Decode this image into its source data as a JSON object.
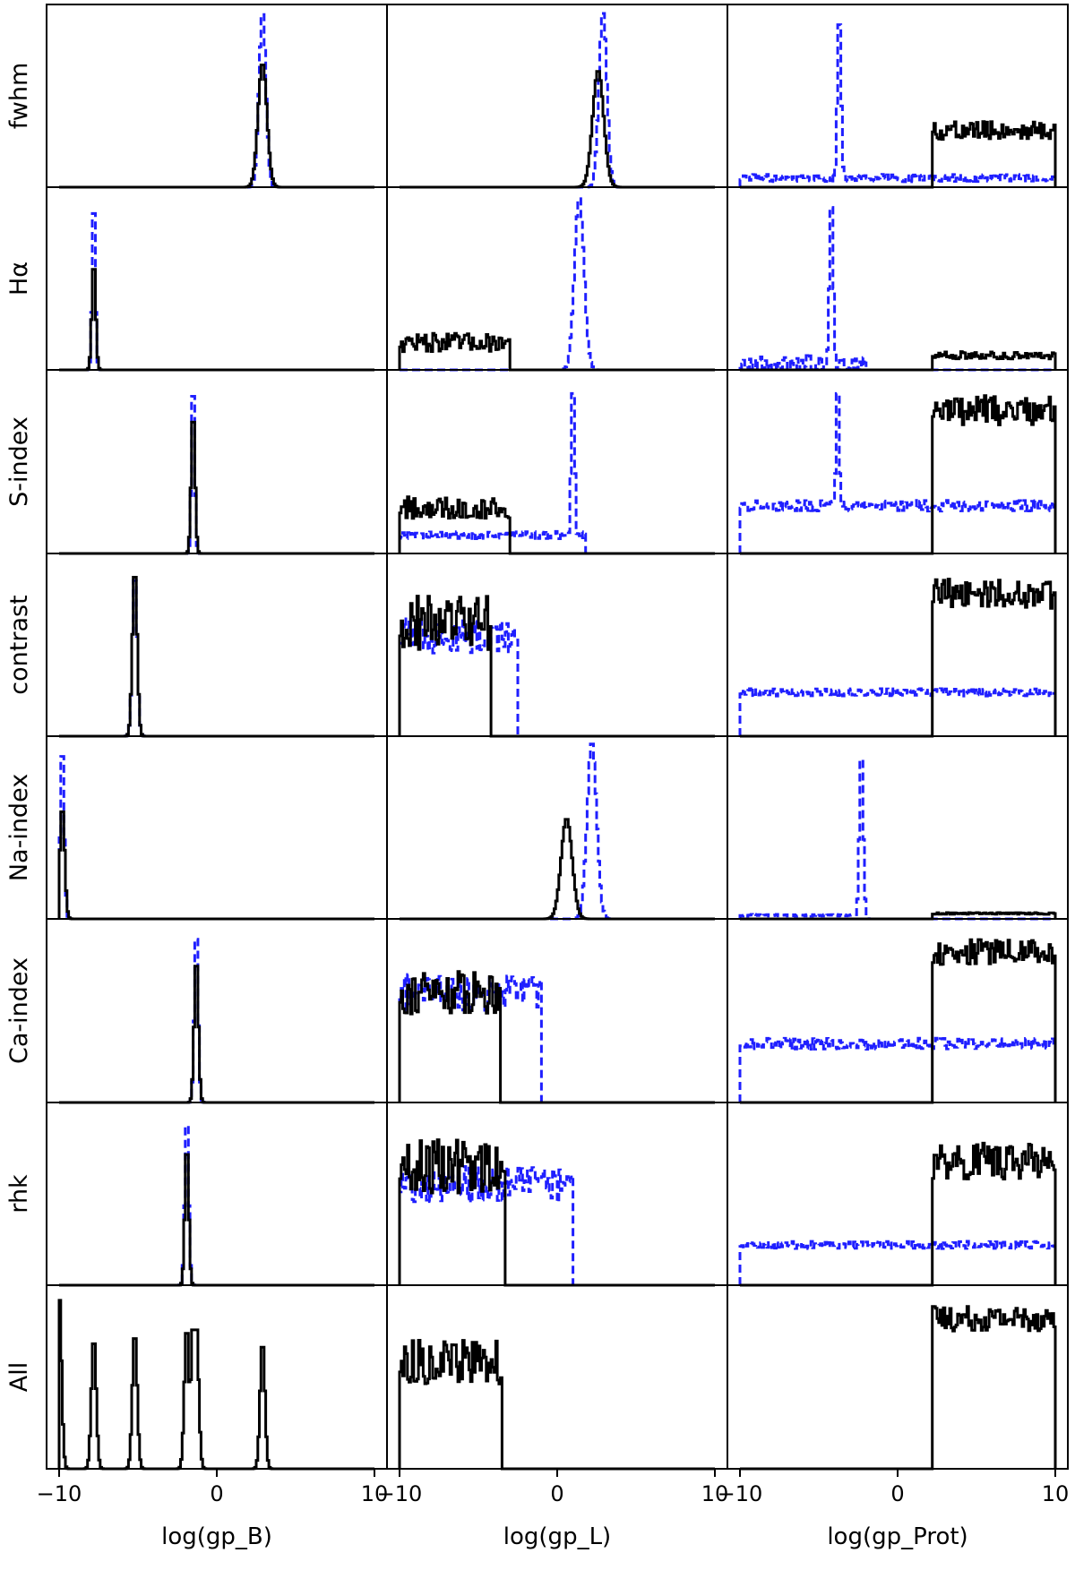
{
  "legend": [
    {
      "style": "solid",
      "color": "#000000"
    },
    {
      "style": "dashed",
      "color": "#1f1fff"
    }
  ],
  "chart_data": {
    "type": "histogram-grid",
    "rows": [
      "fwhm",
      "Hα",
      "S-index",
      "contrast",
      "Na-index",
      "Ca-index",
      "rhk",
      "All"
    ],
    "columns": [
      {
        "xlabel": "log(gp_B)",
        "xlim": [
          -10,
          10
        ],
        "ticks": [
          -10,
          0,
          10
        ],
        "tick_labels": [
          "−10",
          "0",
          "10"
        ]
      },
      {
        "xlabel": "log(gp_L)",
        "xlim": [
          -10,
          10
        ],
        "ticks": [
          -10,
          0,
          10
        ],
        "tick_labels": [
          "−10",
          "0",
          "10"
        ]
      },
      {
        "xlabel": "log(gp_Prot)",
        "xlim": [
          -10,
          10
        ],
        "ticks": [
          -10,
          0,
          10
        ],
        "tick_labels": [
          "−10",
          "0",
          "10"
        ]
      }
    ],
    "series": [
      {
        "style": "solid",
        "color": "#000000"
      },
      {
        "style": "dashed",
        "color": "#1f1fff"
      }
    ],
    "panels": [
      [
        {
          "solid": {
            "kind": "peak",
            "center": 2.9,
            "width": 0.28,
            "height": 0.68
          },
          "dashed": {
            "kind": "peak",
            "center": 2.9,
            "width": 0.22,
            "height": 0.97
          }
        },
        {
          "solid": {
            "kind": "peak",
            "center": 2.6,
            "width": 0.35,
            "height": 0.64
          },
          "dashed": {
            "kind": "peak",
            "center": 2.9,
            "width": 0.25,
            "height": 0.97
          }
        },
        {
          "solid": {
            "kind": "flat",
            "from": 2.2,
            "to": 10,
            "level": 0.31,
            "noise": 0.05
          },
          "dashed": {
            "kind": "flat-peak",
            "from": -10,
            "to": 10,
            "level": 0.05,
            "noise": 0.02,
            "peak": -3.7,
            "peak_height": 0.97
          }
        }
      ],
      [
        {
          "solid": {
            "kind": "peak",
            "center": -7.8,
            "width": 0.12,
            "height": 0.6
          },
          "dashed": {
            "kind": "peak",
            "center": -7.8,
            "width": 0.1,
            "height": 0.97
          }
        },
        {
          "solid": {
            "kind": "flat",
            "from": -10,
            "to": -3,
            "level": 0.15,
            "noise": 0.05
          },
          "dashed": {
            "kind": "peak",
            "center": 1.4,
            "width": 0.3,
            "height": 0.95
          }
        },
        {
          "solid": {
            "kind": "flat",
            "from": 2.2,
            "to": 10,
            "level": 0.08,
            "noise": 0.02
          },
          "dashed": {
            "kind": "flat-peak",
            "from": -10,
            "to": -2,
            "level": 0.03,
            "noise": 0.05,
            "peak": -4.2,
            "peak_height": 0.97
          }
        }
      ],
      [
        {
          "solid": {
            "kind": "peak",
            "center": -1.5,
            "width": 0.12,
            "height": 0.78
          },
          "dashed": {
            "kind": "peak",
            "center": -1.5,
            "width": 0.1,
            "height": 0.97
          }
        },
        {
          "solid": {
            "kind": "flat",
            "from": -10,
            "to": -3,
            "level": 0.25,
            "noise": 0.06
          },
          "dashed": {
            "kind": "flat-peak",
            "from": -10,
            "to": 1.8,
            "level": 0.1,
            "noise": 0.02,
            "peak": 1.0,
            "peak_height": 0.95
          }
        },
        {
          "solid": {
            "kind": "flat",
            "from": 2.2,
            "to": 10,
            "level": 0.78,
            "noise": 0.08
          },
          "dashed": {
            "kind": "flat-peak",
            "from": -10,
            "to": 10,
            "level": 0.26,
            "noise": 0.03,
            "peak": -3.8,
            "peak_height": 0.95
          }
        }
      ],
      [
        {
          "solid": {
            "kind": "peak",
            "center": -5.2,
            "width": 0.15,
            "height": 0.92
          },
          "dashed": {
            "kind": "peak",
            "center": -5.2,
            "width": 0.15,
            "height": 0.9
          }
        },
        {
          "solid": {
            "kind": "flat",
            "from": -10,
            "to": -4.2,
            "level": 0.62,
            "noise": 0.15
          },
          "dashed": {
            "kind": "flat",
            "from": -10,
            "to": -2.5,
            "level": 0.55,
            "noise": 0.1
          }
        },
        {
          "solid": {
            "kind": "flat",
            "from": 2.2,
            "to": 10,
            "level": 0.78,
            "noise": 0.08
          },
          "dashed": {
            "kind": "flat",
            "from": -10,
            "to": 10,
            "level": 0.24,
            "noise": 0.02
          }
        }
      ],
      [
        {
          "solid": {
            "kind": "peak",
            "center": -9.8,
            "width": 0.15,
            "height": 0.62
          },
          "dashed": {
            "kind": "peak",
            "center": -9.8,
            "width": 0.12,
            "height": 0.97
          }
        },
        {
          "solid": {
            "kind": "peak",
            "center": 0.6,
            "width": 0.35,
            "height": 0.55
          },
          "dashed": {
            "kind": "peak",
            "center": 2.2,
            "width": 0.3,
            "height": 0.97
          }
        },
        {
          "solid": {
            "kind": "flat",
            "from": 2.2,
            "to": 10,
            "level": 0.03,
            "noise": 0.005
          },
          "dashed": {
            "kind": "flat-peak",
            "from": -10,
            "to": -2,
            "level": 0.02,
            "noise": 0.005,
            "peak": -2.3,
            "peak_height": 0.95
          }
        }
      ],
      [
        {
          "solid": {
            "kind": "peak",
            "center": -1.3,
            "width": 0.13,
            "height": 0.8
          },
          "dashed": {
            "kind": "peak",
            "center": -1.3,
            "width": 0.12,
            "height": 0.97
          }
        },
        {
          "solid": {
            "kind": "flat",
            "from": -10,
            "to": -3.6,
            "level": 0.6,
            "noise": 0.12
          },
          "dashed": {
            "kind": "flat",
            "from": -10,
            "to": -1,
            "level": 0.6,
            "noise": 0.1
          }
        },
        {
          "solid": {
            "kind": "flat",
            "from": 2.2,
            "to": 10,
            "level": 0.82,
            "noise": 0.07
          },
          "dashed": {
            "kind": "flat",
            "from": -10,
            "to": 10,
            "level": 0.32,
            "noise": 0.03
          }
        }
      ],
      [
        {
          "solid": {
            "kind": "peak",
            "center": -1.9,
            "width": 0.12,
            "height": 0.78
          },
          "dashed": {
            "kind": "peak",
            "center": -1.9,
            "width": 0.12,
            "height": 0.95
          }
        },
        {
          "solid": {
            "kind": "flat",
            "from": -10,
            "to": -3.3,
            "level": 0.65,
            "noise": 0.15
          },
          "dashed": {
            "kind": "flat",
            "from": -10,
            "to": 1.0,
            "level": 0.55,
            "noise": 0.1
          }
        },
        {
          "solid": {
            "kind": "flat",
            "from": 2.2,
            "to": 10,
            "level": 0.68,
            "noise": 0.1
          },
          "dashed": {
            "kind": "flat",
            "from": -10,
            "to": 10,
            "level": 0.22,
            "noise": 0.02
          }
        }
      ],
      [
        {
          "solid": {
            "kind": "peaks",
            "centers": [
              -10,
              -7.8,
              -5.2,
              -1.9,
              -1.5,
              -1.3,
              2.9
            ],
            "width": 0.15,
            "heights": [
              0.97,
              0.72,
              0.75,
              0.78,
              0.8,
              0.8,
              0.7
            ]
          }
        },
        {
          "solid": {
            "kind": "flat",
            "from": -10,
            "to": -3.5,
            "level": 0.58,
            "noise": 0.12
          }
        },
        {
          "solid": {
            "kind": "flat",
            "from": 2.2,
            "to": 10,
            "level": 0.82,
            "noise": 0.07
          }
        }
      ]
    ]
  }
}
